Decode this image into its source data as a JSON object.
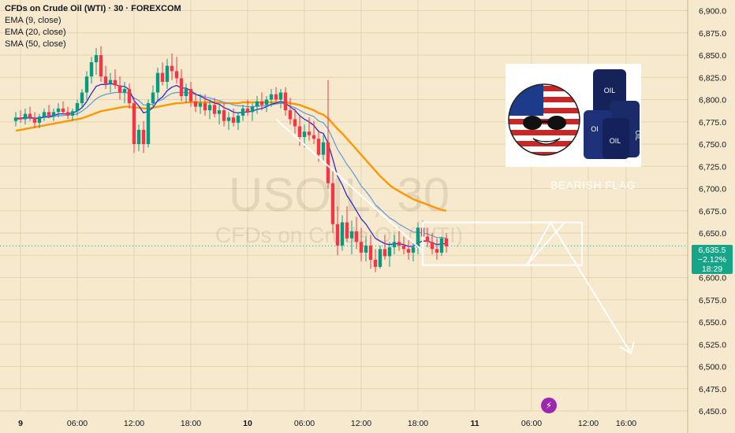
{
  "legend": {
    "title": "CFDs on Crude Oil (WTI) · 30 · FOREXCOM",
    "ema9": "EMA (9, close)",
    "ema20": "EMA (20, close)",
    "sma50": "SMA (50, close)"
  },
  "watermark": {
    "symbol": "USOIL, 30",
    "description": "CFDs on Crude Oil (WTI)"
  },
  "annotation": {
    "label": "BEARISH FLAG"
  },
  "oil_image": {
    "barrel_text_1": "OIL",
    "barrel_text_2": "OIL",
    "barrel_text_3": "OI",
    "barrel_text_4": "OIL"
  },
  "price_badge": {
    "price": "6,635.5",
    "change": "−2.12%",
    "countdown": "18:29"
  },
  "colors": {
    "up": "#089981",
    "down": "#f23645",
    "ema9": "#2b2bd6",
    "ema20": "#5b9bd5",
    "sma50": "#ff9800",
    "badge": "#17a589",
    "background": "#f7e9cd"
  },
  "chart_data": {
    "type": "candlestick",
    "symbol": "USOIL",
    "interval": "30",
    "ylim": [
      6450,
      6912
    ],
    "yticks": [
      6450,
      6475,
      6500,
      6525,
      6550,
      6575,
      6600,
      6625,
      6650,
      6675,
      6700,
      6725,
      6750,
      6775,
      6800,
      6825,
      6850,
      6875,
      6900
    ],
    "ytick_labels": [
      "6,450.0",
      "6,475.0",
      "6,500.0",
      "6,525.0",
      "6,550.0",
      "6,575.0",
      "6,600.0",
      "6,625.0",
      "6,650.0",
      "6,675.0",
      "6,700.0",
      "6,725.0",
      "6,750.0",
      "6,775.0",
      "6,800.0",
      "6,825.0",
      "6,850.0",
      "6,875.0",
      "6,900.0"
    ],
    "xticks": [
      {
        "label": "9",
        "bar": 1,
        "bold": true
      },
      {
        "label": "06:00",
        "bar": 13
      },
      {
        "label": "12:00",
        "bar": 25
      },
      {
        "label": "18:00",
        "bar": 37
      },
      {
        "label": "10",
        "bar": 49,
        "bold": true
      },
      {
        "label": "06:00",
        "bar": 61
      },
      {
        "label": "12:00",
        "bar": 73
      },
      {
        "label": "18:00",
        "bar": 85
      },
      {
        "label": "11",
        "bar": 97,
        "bold": true
      },
      {
        "label": "06:00",
        "bar": 109
      },
      {
        "label": "12:00",
        "bar": 121
      },
      {
        "label": "16:00",
        "bar": 129
      }
    ],
    "candles": [
      [
        6776,
        6786,
        6770,
        6780
      ],
      [
        6780,
        6788,
        6774,
        6778
      ],
      [
        6778,
        6790,
        6772,
        6784
      ],
      [
        6784,
        6792,
        6776,
        6780
      ],
      [
        6780,
        6786,
        6768,
        6774
      ],
      [
        6774,
        6784,
        6768,
        6781
      ],
      [
        6781,
        6790,
        6776,
        6786
      ],
      [
        6786,
        6794,
        6779,
        6782
      ],
      [
        6782,
        6790,
        6776,
        6786
      ],
      [
        6786,
        6796,
        6780,
        6790
      ],
      [
        6790,
        6798,
        6783,
        6786
      ],
      [
        6786,
        6792,
        6778,
        6782
      ],
      [
        6782,
        6790,
        6776,
        6787
      ],
      [
        6787,
        6800,
        6782,
        6796
      ],
      [
        6796,
        6812,
        6790,
        6808
      ],
      [
        6808,
        6832,
        6800,
        6826
      ],
      [
        6826,
        6848,
        6818,
        6842
      ],
      [
        6842,
        6858,
        6828,
        6850
      ],
      [
        6850,
        6860,
        6820,
        6826
      ],
      [
        6826,
        6838,
        6812,
        6818
      ],
      [
        6818,
        6830,
        6808,
        6822
      ],
      [
        6822,
        6834,
        6812,
        6816
      ],
      [
        6816,
        6826,
        6800,
        6808
      ],
      [
        6808,
        6820,
        6796,
        6812
      ],
      [
        6812,
        6818,
        6790,
        6796
      ],
      [
        6796,
        6802,
        6740,
        6750
      ],
      [
        6750,
        6772,
        6742,
        6766
      ],
      [
        6766,
        6776,
        6740,
        6750
      ],
      [
        6750,
        6800,
        6746,
        6796
      ],
      [
        6796,
        6816,
        6790,
        6808
      ],
      [
        6808,
        6836,
        6800,
        6830
      ],
      [
        6830,
        6842,
        6816,
        6820
      ],
      [
        6820,
        6846,
        6812,
        6838
      ],
      [
        6838,
        6852,
        6822,
        6832
      ],
      [
        6832,
        6848,
        6818,
        6824
      ],
      [
        6824,
        6834,
        6798,
        6804
      ],
      [
        6804,
        6818,
        6796,
        6812
      ],
      [
        6812,
        6820,
        6792,
        6798
      ],
      [
        6798,
        6808,
        6786,
        6792
      ],
      [
        6792,
        6806,
        6784,
        6796
      ],
      [
        6796,
        6806,
        6782,
        6788
      ],
      [
        6788,
        6800,
        6778,
        6794
      ],
      [
        6794,
        6802,
        6780,
        6784
      ],
      [
        6784,
        6794,
        6772,
        6788
      ],
      [
        6788,
        6796,
        6770,
        6776
      ],
      [
        6776,
        6786,
        6766,
        6780
      ],
      [
        6780,
        6790,
        6770,
        6774
      ],
      [
        6774,
        6786,
        6766,
        6782
      ],
      [
        6782,
        6794,
        6776,
        6790
      ],
      [
        6790,
        6800,
        6782,
        6786
      ],
      [
        6786,
        6796,
        6776,
        6792
      ],
      [
        6792,
        6804,
        6784,
        6798
      ],
      [
        6798,
        6808,
        6788,
        6794
      ],
      [
        6794,
        6804,
        6786,
        6800
      ],
      [
        6800,
        6812,
        6792,
        6806
      ],
      [
        6806,
        6814,
        6796,
        6800
      ],
      [
        6800,
        6812,
        6790,
        6808
      ],
      [
        6808,
        6814,
        6782,
        6788
      ],
      [
        6788,
        6802,
        6772,
        6778
      ],
      [
        6778,
        6790,
        6762,
        6770
      ],
      [
        6770,
        6782,
        6748,
        6758
      ],
      [
        6758,
        6772,
        6746,
        6764
      ],
      [
        6764,
        6780,
        6754,
        6760
      ],
      [
        6760,
        6776,
        6750,
        6756
      ],
      [
        6756,
        6766,
        6730,
        6738
      ],
      [
        6738,
        6760,
        6730,
        6752
      ],
      [
        6752,
        6822,
        6700,
        6706
      ],
      [
        6706,
        6720,
        6650,
        6660
      ],
      [
        6660,
        6680,
        6625,
        6636
      ],
      [
        6636,
        6670,
        6630,
        6662
      ],
      [
        6662,
        6680,
        6640,
        6644
      ],
      [
        6644,
        6664,
        6626,
        6652
      ],
      [
        6652,
        6668,
        6632,
        6640
      ],
      [
        6640,
        6656,
        6618,
        6628
      ],
      [
        6628,
        6646,
        6618,
        6636
      ],
      [
        6636,
        6648,
        6610,
        6620
      ],
      [
        6620,
        6632,
        6606,
        6612
      ],
      [
        6612,
        6636,
        6610,
        6632
      ],
      [
        6632,
        6648,
        6620,
        6624
      ],
      [
        6624,
        6640,
        6612,
        6634
      ],
      [
        6634,
        6648,
        6626,
        6640
      ],
      [
        6640,
        6652,
        6630,
        6636
      ],
      [
        6636,
        6646,
        6626,
        6632
      ],
      [
        6632,
        6642,
        6620,
        6628
      ],
      [
        6628,
        6640,
        6618,
        6634
      ],
      [
        6634,
        6662,
        6626,
        6656
      ],
      [
        6656,
        6664,
        6640,
        6646
      ],
      [
        6646,
        6656,
        6634,
        6640
      ],
      [
        6640,
        6650,
        6626,
        6632
      ],
      [
        6632,
        6644,
        6620,
        6628
      ],
      [
        6628,
        6646,
        6624,
        6644
      ],
      [
        6644,
        6650,
        6628,
        6635
      ]
    ],
    "ema9": [
      6779,
      6779,
      6780,
      6780,
      6779,
      6779,
      6781,
      6781,
      6782,
      6784,
      6784,
      6784,
      6785,
      6787,
      6791,
      6798,
      6807,
      6815,
      6817,
      6817,
      6818,
      6817,
      6815,
      6815,
      6811,
      6799,
      6793,
      6785,
      6787,
      6791,
      6799,
      6803,
      6810,
      6814,
      6816,
      6813,
      6813,
      6810,
      6806,
      6804,
      6801,
      6799,
      6796,
      6795,
      6791,
      6789,
      6786,
      6785,
      6786,
      6786,
      6787,
      6789,
      6790,
      6792,
      6795,
      6796,
      6798,
      6796,
      6792,
      6788,
      6782,
      6778,
      6775,
      6771,
      6764,
      6762,
      6751,
      6733,
      6714,
      6704,
      6692,
      6684,
      6675,
      6666,
      6660,
      6652,
      6644,
      6641,
      6638,
      6637,
      6638,
      6638,
      6637,
      6635,
      6635,
      6639,
      6641,
      6641,
      6639,
      6637,
      6638,
      6638
    ],
    "ema20": [
      6778,
      6778,
      6779,
      6779,
      6779,
      6779,
      6780,
      6780,
      6781,
      6782,
      6782,
      6783,
      6783,
      6784,
      6787,
      6791,
      6796,
      6801,
      6804,
      6806,
      6807,
      6808,
      6808,
      6808,
      6807,
      6802,
      6799,
      6794,
      6794,
      6795,
      6798,
      6800,
      6804,
      6807,
      6808,
      6808,
      6808,
      6807,
      6806,
      6805,
      6803,
      6802,
      6800,
      6799,
      6797,
      6796,
      6794,
      6793,
      6793,
      6792,
      6792,
      6793,
      6793,
      6793,
      6794,
      6795,
      6796,
      6795,
      6793,
      6791,
      6788,
      6785,
      6783,
      6781,
      6776,
      6774,
      6767,
      6756,
      6744,
      6736,
      6727,
      6720,
      6712,
      6703,
      6697,
      6690,
      6682,
      6677,
      6672,
      6667,
      6664,
      6660,
      6657,
      6654,
      6651,
      6651,
      6650,
      6649,
      6647,
      6645,
      6645,
      6644
    ],
    "sma50": [
      6765,
      6766,
      6767,
      6768,
      6769,
      6770,
      6771,
      6772,
      6773,
      6774,
      6775,
      6776,
      6777,
      6778,
      6779,
      6781,
      6783,
      6785,
      6787,
      6788,
      6789,
      6790,
      6791,
      6792,
      6792,
      6791,
      6791,
      6790,
      6790,
      6791,
      6792,
      6793,
      6794,
      6795,
      6796,
      6796,
      6797,
      6797,
      6797,
      6797,
      6797,
      6797,
      6797,
      6797,
      6796,
      6796,
      6796,
      6796,
      6797,
      6797,
      6797,
      6797,
      6797,
      6797,
      6797,
      6797,
      6797,
      6797,
      6796,
      6795,
      6794,
      6792,
      6790,
      6788,
      6785,
      6783,
      6779,
      6773,
      6767,
      6762,
      6756,
      6750,
      6744,
      6738,
      6732,
      6726,
      6720,
      6714,
      6709,
      6704,
      6700,
      6697,
      6694,
      6691,
      6688,
      6686,
      6684,
      6682,
      6680,
      6678,
      6676,
      6675
    ],
    "flag_channel": {
      "start_bar": 86,
      "end_bar": 121,
      "top": [
        6662,
        6662
      ],
      "bottom": [
        6614,
        6614
      ]
    },
    "projection": [
      {
        "bar": 108,
        "price": 6614
      },
      {
        "bar": 113,
        "price": 6662
      },
      {
        "bar": 130,
        "price": 6515
      }
    ],
    "flagpole": [
      {
        "bar": 55,
        "price": 6778
      },
      {
        "bar": 86,
        "price": 6630
      }
    ],
    "current_price": 6635.5,
    "current_change": "−2.12%",
    "countdown": "18:29"
  }
}
